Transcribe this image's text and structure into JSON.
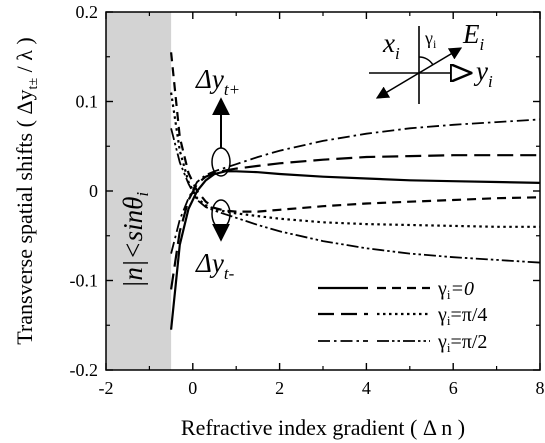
{
  "chart_data": {
    "type": "line",
    "xlabel": "Refractive index gradient ( Δ n )",
    "ylabel": "Transverse spatial shifts ( Δy",
    "ylabel_sub": "t±",
    "ylabel_tail": " / λ )",
    "xlim": [
      -2,
      8
    ],
    "ylim": [
      -0.2,
      0.2
    ],
    "x_ticks": [
      -2,
      0,
      2,
      4,
      6,
      8
    ],
    "x_tick_labels": [
      "-2",
      "0",
      "2",
      "4",
      "6",
      "8"
    ],
    "y_ticks": [
      -0.2,
      -0.1,
      0,
      0.1,
      0.2
    ],
    "y_tick_labels": [
      "-0.2",
      "-0.1",
      "0",
      "0.1",
      "0.2"
    ],
    "shaded_region": {
      "x": [
        -2,
        -0.5
      ],
      "label_main": "|n|<sin",
      "label_theta": "θ",
      "label_sub": "i"
    },
    "annotations": {
      "upper_label": "Δy",
      "upper_sub": "t+",
      "lower_label": "Δy",
      "lower_sub": "t-",
      "inset_x": "x",
      "inset_x_sub": "i",
      "inset_gamma": "γ",
      "inset_gamma_sub": "i",
      "inset_e": "E",
      "inset_e_sub": "i",
      "inset_y": "y",
      "inset_y_sub": "i"
    },
    "legend": {
      "placement": "bottom-right",
      "entries": [
        {
          "label": "γ",
          "label_sub": "i",
          "label_tail": "=0",
          "styles": [
            "solid",
            "dash"
          ]
        },
        {
          "label": "γ",
          "label_sub": "i",
          "label_tail": "=π/4",
          "styles": [
            "longdash",
            "dot"
          ]
        },
        {
          "label": "γ",
          "label_sub": "i",
          "label_tail": "=π/2",
          "styles": [
            "dashdot",
            "dashdotdot"
          ]
        }
      ]
    },
    "series": [
      {
        "style": "solid",
        "x": [
          -0.5,
          -0.3,
          -0.1,
          0.1,
          0.3,
          0.5,
          0.75,
          1.0,
          1.5,
          2,
          3,
          4,
          5,
          6,
          7,
          8
        ],
        "y": [
          -0.155,
          -0.06,
          -0.02,
          0.0,
          0.012,
          0.019,
          0.022,
          0.022,
          0.021,
          0.019,
          0.016,
          0.014,
          0.012,
          0.011,
          0.01,
          0.009
        ]
      },
      {
        "style": "dash",
        "x": [
          -0.5,
          -0.3,
          -0.1,
          0.1,
          0.3,
          0.5,
          0.75,
          1.0,
          1.5,
          2,
          3,
          4,
          5,
          6,
          7,
          8
        ],
        "y": [
          0.155,
          0.06,
          0.02,
          0.0,
          -0.012,
          -0.019,
          -0.022,
          -0.023,
          -0.023,
          -0.021,
          -0.017,
          -0.014,
          -0.012,
          -0.01,
          -0.008,
          -0.007
        ]
      },
      {
        "style": "longdash",
        "x": [
          -0.5,
          -0.3,
          -0.1,
          0.1,
          0.3,
          0.5,
          0.75,
          1.0,
          1.5,
          2,
          3,
          4,
          5,
          6,
          7,
          8
        ],
        "y": [
          -0.11,
          -0.045,
          -0.01,
          0.008,
          0.016,
          0.02,
          0.023,
          0.025,
          0.028,
          0.031,
          0.035,
          0.038,
          0.039,
          0.04,
          0.04,
          0.04
        ]
      },
      {
        "style": "dot",
        "x": [
          -0.5,
          -0.3,
          -0.1,
          0.1,
          0.3,
          0.5,
          0.75,
          1.0,
          1.5,
          2,
          3,
          4,
          5,
          6,
          7,
          8
        ],
        "y": [
          0.11,
          0.045,
          0.01,
          -0.008,
          -0.016,
          -0.02,
          -0.023,
          -0.025,
          -0.028,
          -0.031,
          -0.035,
          -0.037,
          -0.038,
          -0.039,
          -0.04,
          -0.04
        ]
      },
      {
        "style": "dashdot",
        "x": [
          -0.5,
          -0.3,
          -0.1,
          0.1,
          0.3,
          0.5,
          0.75,
          1.0,
          1.5,
          2,
          3,
          4,
          5,
          6,
          7,
          8
        ],
        "y": [
          -0.07,
          -0.032,
          -0.008,
          0.01,
          0.018,
          0.022,
          0.026,
          0.03,
          0.038,
          0.045,
          0.056,
          0.064,
          0.07,
          0.074,
          0.077,
          0.08
        ]
      },
      {
        "style": "dashdotdot",
        "x": [
          -0.5,
          -0.3,
          -0.1,
          0.1,
          0.3,
          0.5,
          0.75,
          1.0,
          1.5,
          2,
          3,
          4,
          5,
          6,
          7,
          8
        ],
        "y": [
          0.07,
          0.032,
          0.008,
          -0.01,
          -0.018,
          -0.022,
          -0.026,
          -0.03,
          -0.038,
          -0.045,
          -0.056,
          -0.064,
          -0.07,
          -0.074,
          -0.077,
          -0.08
        ]
      }
    ]
  }
}
